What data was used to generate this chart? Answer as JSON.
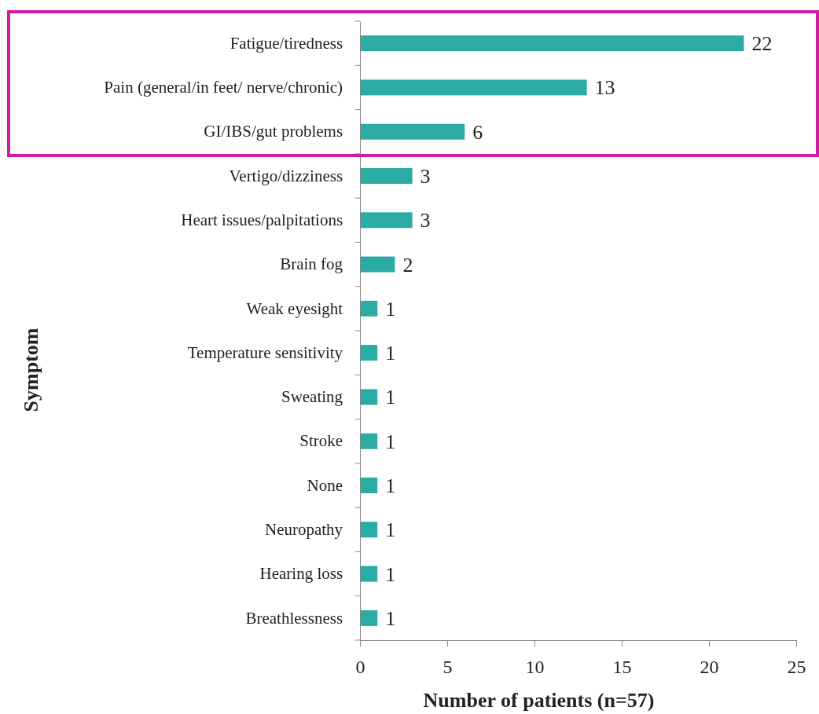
{
  "chart_data": {
    "type": "bar",
    "orientation": "horizontal",
    "xlabel": "Number of patients (n=57)",
    "ylabel": "Symptom",
    "categories": [
      "Fatigue/tiredness",
      "Pain (general/in feet/ nerve/chronic)",
      "GI/IBS/gut problems",
      "Vertigo/dizziness",
      "Heart issues/palpitations",
      "Brain fog",
      "Weak eyesight",
      "Temperature sensitivity",
      "Sweating",
      "Stroke",
      "None",
      "Neuropathy",
      "Hearing loss",
      "Breathlessness"
    ],
    "values": [
      22,
      13,
      6,
      3,
      3,
      2,
      1,
      1,
      1,
      1,
      1,
      1,
      1,
      1
    ],
    "color": "#2aaba3",
    "xlim": [
      0,
      25
    ],
    "xticks": [
      0,
      5,
      10,
      15,
      20,
      25
    ],
    "data_labels": true,
    "grid": false
  }
}
